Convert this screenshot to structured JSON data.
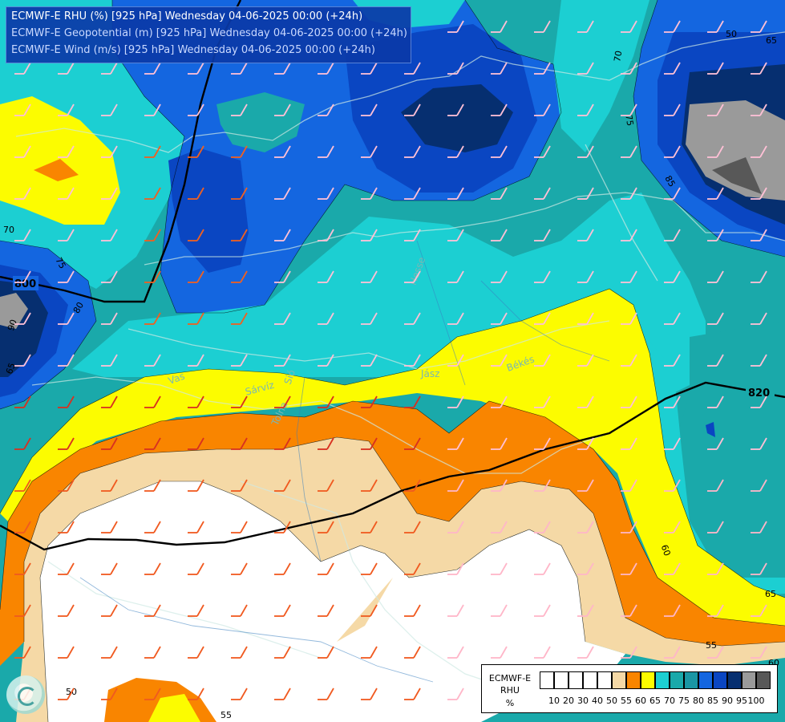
{
  "header": {
    "line1": "ECMWF-E RHU (%) [925 hPa] Wednesday 04-06-2025 00:00 (+24h)",
    "line2": "ECMWF-E Geopotential (m) [925 hPa] Wednesday 04-06-2025 00:00 (+24h)",
    "line3": "ECMWF-E Wind (m/s) [925 hPa] Wednesday 04-06-2025 00:00 (+24h)"
  },
  "legend": {
    "title_line1": "ECMWF-E",
    "title_line2": "RHU",
    "title_line3": "%",
    "ticks": [
      "10",
      "20",
      "30",
      "40",
      "50",
      "55",
      "60",
      "65",
      "70",
      "75",
      "80",
      "85",
      "90",
      "95",
      "100"
    ],
    "colors": [
      "#ffffff",
      "#ffffff",
      "#ffffff",
      "#ffffff",
      "#ffffff",
      "#f5d9a6",
      "#f98500",
      "#fcfc00",
      "#1ccfd2",
      "#1aa9aa",
      "#1a96a4",
      "#1466e0",
      "#0a46c2",
      "#062f70",
      "#9a9a9a",
      "#585858"
    ]
  },
  "contour_labels": {
    "geopotential": [
      "800",
      "820"
    ],
    "rhu": [
      "70",
      "75",
      "75",
      "70",
      "85",
      "65",
      "60",
      "55",
      "50",
      "55",
      "65",
      "60",
      "50",
      "65",
      "90",
      "80"
    ]
  },
  "place_labels": [
    "Hesse",
    "Békés",
    "Jász",
    "Sárvíz",
    "Sió",
    "Tolna",
    "Vas"
  ],
  "colors": {
    "white_zone": "#ffffff",
    "wheat": "#f5d9a6",
    "orange": "#f98500",
    "yellow": "#fcfc00",
    "cyan_light": "#1ccfd2",
    "teal": "#1aa9aa",
    "blue": "#1466e0",
    "blue_dark": "#0a46c2",
    "navy": "#062f70",
    "gray": "#9a9a9a",
    "gray_dark": "#585858",
    "header_bg": "#0b3aa8",
    "geopotential_line": "#000000"
  },
  "icons": [
    "ecmwf-logo-icon",
    "wind-barb-icon"
  ]
}
